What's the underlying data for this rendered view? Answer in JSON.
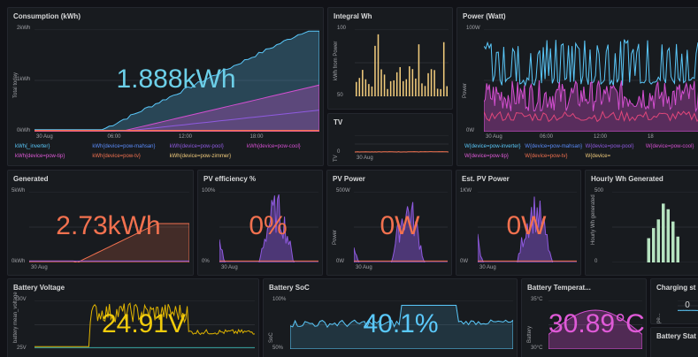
{
  "panels": [
    {
      "title": "Consumption (kWh)",
      "value": "1.888kWh",
      "y_label": "Total today",
      "yticks": [
        "2kWh",
        "1kWh",
        "0kWh"
      ],
      "xticks": [
        "30 Aug",
        "06:00",
        "12:00",
        "18:00"
      ],
      "legend": [
        "kWh{_inverter}",
        "kWh{device=pow-mahsan}",
        "kWh{device=pow-pool}",
        "kWh{device=pow-cool}",
        "kWh{device=pow-tip}",
        "kWh{device=pow-tv}",
        "kWh{device=pow-zimmer}"
      ]
    },
    {
      "title": "Integral Wh",
      "y_label": "kWh from Power",
      "yticks": [
        "100",
        "50"
      ]
    },
    {
      "title": "TV",
      "y_label": "TV",
      "yticks": [
        "0"
      ],
      "xticks": [
        "30 Aug"
      ]
    },
    {
      "title": "Power (Watt)",
      "y_label": "Power",
      "yticks": [
        "100W",
        "0W"
      ],
      "xticks": [
        "30 Aug",
        "06:00",
        "12:00",
        "18"
      ],
      "legend": [
        "W{device=pow-inverter}",
        "W{device=pow-mahsan}",
        "W{device=pow-pool}",
        "W{device=pow-cool}",
        "W{device=pow-tip}",
        "W{device=pow-tv}",
        "W{device="
      ]
    },
    {
      "title": "Generated",
      "value": "2.73kWh",
      "yticks": [
        "5kWh",
        "0kWh"
      ],
      "xticks": [
        "30 Aug"
      ]
    },
    {
      "title": "PV efficiency %",
      "value": "0%",
      "yticks": [
        "100%",
        "0%"
      ],
      "xticks": [
        "30 Aug"
      ]
    },
    {
      "title": "PV Power",
      "value": "0W",
      "y_label": "Power",
      "yticks": [
        "500W",
        "0W"
      ],
      "xticks": [
        "30 Aug"
      ]
    },
    {
      "title": "Est. PV Power",
      "value": "0W",
      "yticks": [
        "1KW",
        "0W"
      ],
      "xticks": [
        "30 Aug"
      ]
    },
    {
      "title": "Hourly Wh Generated",
      "y_label": "Hourly Wh generated",
      "yticks": [
        "500",
        "0"
      ]
    },
    {
      "title": "Battery Voltage",
      "value": "24.91V",
      "y_label": "battery mean_voltage",
      "yticks": [
        "30V",
        "25V"
      ]
    },
    {
      "title": "Battery SoC",
      "value": "40.1%",
      "y_label": "SoC",
      "yticks": [
        "100%",
        "50%"
      ]
    },
    {
      "title": "Battery Temperat...",
      "value": "30.89°C",
      "y_label": "Battery",
      "yticks": [
        "35°C",
        "30°C"
      ]
    },
    {
      "title": "Charging st",
      "value": "0",
      "y_label": "pe..."
    },
    {
      "title": "Battery Stat"
    }
  ]
}
